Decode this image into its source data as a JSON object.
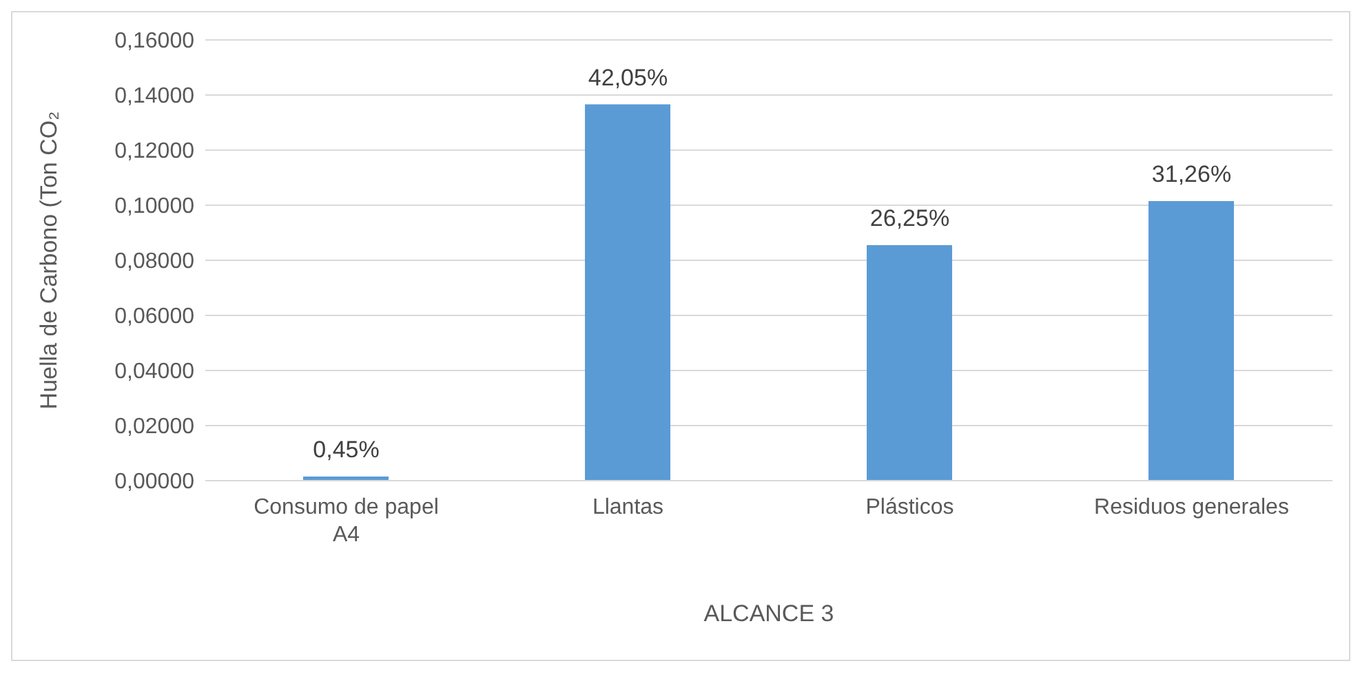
{
  "chart_data": {
    "type": "bar",
    "xlabel": "ALCANCE 3",
    "ylabel": "Huella de Carbono (Ton CO₂",
    "categories": [
      "Consumo de papel A4",
      "Llantas",
      "Plásticos",
      "Residuos generales"
    ],
    "values": [
      0.0015,
      0.1366,
      0.0855,
      0.1015
    ],
    "annotations": [
      {
        "text": "0,45%",
        "x": "Consumo de papel A4",
        "y": 0.0015
      },
      {
        "text": "42,05%",
        "x": "Llantas",
        "y": 0.1366
      },
      {
        "text": "26,25%",
        "x": "Plásticos",
        "y": 0.0855
      },
      {
        "text": "31,26%",
        "x": "Residuos generales",
        "y": 0.1015
      }
    ],
    "color": "#5b9bd5",
    "ylim": [
      0,
      0.16
    ],
    "yticks": [
      {
        "value": 0,
        "label": "0,00000"
      },
      {
        "value": 0.02,
        "label": "0,02000"
      },
      {
        "value": 0.04,
        "label": "0,04000"
      },
      {
        "value": 0.06,
        "label": "0,06000"
      },
      {
        "value": 0.08,
        "label": "0,08000"
      },
      {
        "value": 0.1,
        "label": "0,10000"
      },
      {
        "value": 0.12,
        "label": "0,12000"
      },
      {
        "value": 0.14,
        "label": "0,14000"
      },
      {
        "value": 0.16,
        "label": "0,16000"
      }
    ],
    "grid": "y",
    "legend": false
  }
}
